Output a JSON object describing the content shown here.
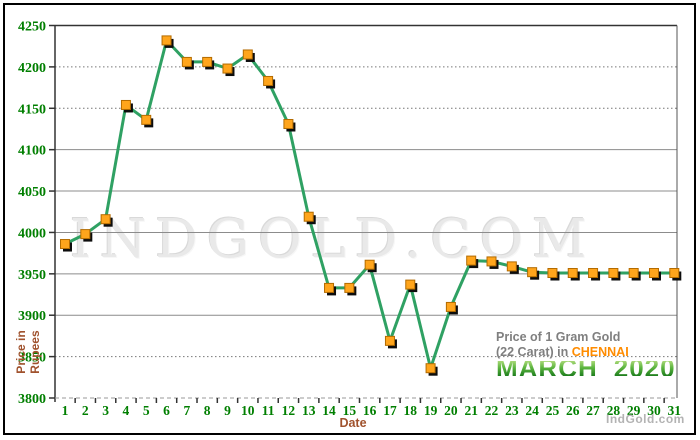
{
  "watermark": "INDGOLD.COM",
  "axes": {
    "x_title": "Date",
    "y_title_line1": "Price in",
    "y_title_line2": "Rupees"
  },
  "annotation": {
    "line1": "Price of 1 Gram Gold",
    "line2_prefix": "(22 Carat) in ",
    "city": "CHENNAI",
    "month": "MARCH",
    "year": "2020"
  },
  "footer_brand": "IndGold.com",
  "colors": {
    "line": "#2fa163",
    "marker_fill": "#ffa51c",
    "marker_border": "#b36b00",
    "marker_shadow": "#0d0d0d",
    "grid": "#8c8c8c",
    "grid_dotted": "#777777",
    "axis": "#333333",
    "tick_label": "#007f00",
    "axis_title": "#a0522d",
    "annotation_gray": "#7f7f7f",
    "city_orange": "#ff8c00",
    "month_green": "#3e9e33"
  },
  "chart_data": {
    "type": "line",
    "title": "Price of 1 Gram Gold (22 Carat) in CHENNAI - MARCH 2020",
    "xlabel": "Date",
    "ylabel": "Price in Rupees",
    "categories": [
      1,
      2,
      3,
      4,
      5,
      6,
      7,
      8,
      9,
      10,
      11,
      12,
      13,
      14,
      15,
      16,
      17,
      18,
      19,
      20,
      21,
      22,
      23,
      24,
      25,
      26,
      27,
      28,
      29,
      30,
      31
    ],
    "values": [
      3986,
      3998,
      4016,
      4154,
      4136,
      4232,
      4206,
      4206,
      4198,
      4215,
      4183,
      4131,
      4019,
      3933,
      3933,
      3961,
      3869,
      3937,
      3836,
      3910,
      3966,
      3965,
      3959,
      3952,
      3951,
      3951,
      3951,
      3951,
      3951,
      3951,
      3951
    ],
    "ylim": [
      3800,
      4250
    ],
    "ytick_step": 50,
    "ytick_labels": [
      "3800",
      "3850",
      "3900",
      "3950",
      "4000",
      "4050",
      "4100",
      "4150",
      "4200",
      "4250"
    ],
    "dotted_gridlines": [
      4200,
      4150,
      3850
    ],
    "grid": true,
    "legend": false,
    "marker": "square"
  }
}
